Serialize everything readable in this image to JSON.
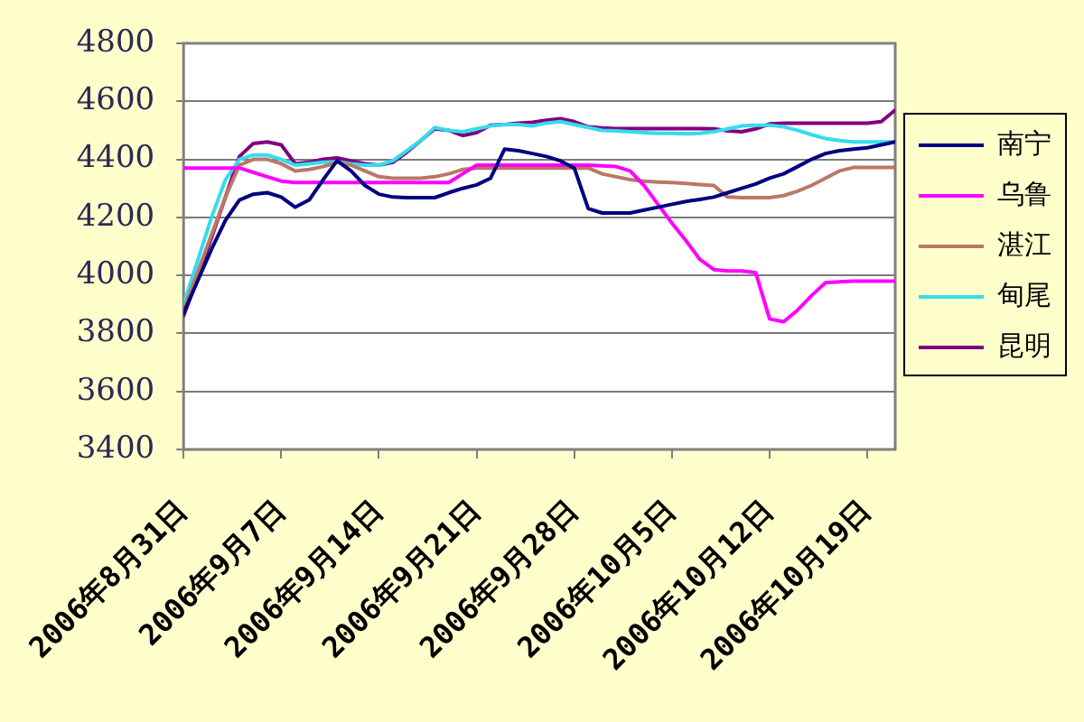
{
  "chart_data": {
    "type": "line",
    "x": [
      "2006-08-31",
      "2006-09-01",
      "2006-09-02",
      "2006-09-03",
      "2006-09-04",
      "2006-09-05",
      "2006-09-06",
      "2006-09-07",
      "2006-09-08",
      "2006-09-09",
      "2006-09-10",
      "2006-09-11",
      "2006-09-12",
      "2006-09-13",
      "2006-09-14",
      "2006-09-15",
      "2006-09-16",
      "2006-09-17",
      "2006-09-18",
      "2006-09-19",
      "2006-09-20",
      "2006-09-21",
      "2006-09-22",
      "2006-09-23",
      "2006-09-24",
      "2006-09-25",
      "2006-09-26",
      "2006-09-27",
      "2006-09-28",
      "2006-09-29",
      "2006-09-30",
      "2006-10-01",
      "2006-10-02",
      "2006-10-03",
      "2006-10-04",
      "2006-10-05",
      "2006-10-06",
      "2006-10-07",
      "2006-10-08",
      "2006-10-09",
      "2006-10-10",
      "2006-10-11",
      "2006-10-12",
      "2006-10-13",
      "2006-10-14",
      "2006-10-15",
      "2006-10-16",
      "2006-10-17",
      "2006-10-18",
      "2006-10-19",
      "2006-10-20",
      "2006-10-21"
    ],
    "series": [
      {
        "name": "南宁",
        "color": "#000080",
        "values": [
          3870,
          3980,
          4090,
          4190,
          4260,
          4280,
          4285,
          4270,
          4235,
          4260,
          4330,
          4395,
          4360,
          4310,
          4280,
          4270,
          4268,
          4268,
          4268,
          4285,
          4300,
          4312,
          4335,
          4435,
          4430,
          4420,
          4410,
          4395,
          4370,
          4230,
          4215,
          4215,
          4215,
          4225,
          4235,
          4245,
          4255,
          4262,
          4270,
          4285,
          4300,
          4315,
          4335,
          4350,
          4375,
          4400,
          4420,
          4430,
          4435,
          4440,
          4450,
          4460
        ]
      },
      {
        "name": "乌鲁",
        "color": "#ff00ff",
        "values": [
          4370,
          4370,
          4370,
          4370,
          4370,
          4355,
          4340,
          4325,
          4320,
          4320,
          4320,
          4320,
          4320,
          4320,
          4320,
          4320,
          4320,
          4320,
          4320,
          4320,
          4350,
          4380,
          4380,
          4380,
          4380,
          4380,
          4380,
          4380,
          4380,
          4380,
          4378,
          4375,
          4360,
          4310,
          4245,
          4180,
          4120,
          4055,
          4020,
          4015,
          4015,
          4010,
          3850,
          3840,
          3880,
          3930,
          3975,
          3978,
          3980,
          3980,
          3980,
          3980
        ]
      },
      {
        "name": "湛江",
        "color": "#bb7766",
        "values": [
          3880,
          4010,
          4140,
          4270,
          4380,
          4400,
          4400,
          4385,
          4360,
          4365,
          4375,
          4390,
          4380,
          4360,
          4340,
          4335,
          4335,
          4335,
          4340,
          4350,
          4365,
          4370,
          4370,
          4370,
          4370,
          4370,
          4370,
          4370,
          4370,
          4370,
          4350,
          4340,
          4330,
          4325,
          4322,
          4320,
          4317,
          4313,
          4310,
          4270,
          4268,
          4268,
          4268,
          4275,
          4290,
          4310,
          4335,
          4360,
          4372,
          4372,
          4372,
          4372
        ]
      },
      {
        "name": "甸尾",
        "color": "#33ddee",
        "values": [
          3900,
          4050,
          4200,
          4330,
          4400,
          4415,
          4415,
          4400,
          4380,
          4385,
          4390,
          4392,
          4385,
          4380,
          4380,
          4395,
          4430,
          4465,
          4510,
          4500,
          4495,
          4505,
          4515,
          4520,
          4520,
          4515,
          4525,
          4530,
          4520,
          4510,
          4500,
          4498,
          4495,
          4492,
          4490,
          4490,
          4488,
          4490,
          4495,
          4505,
          4515,
          4518,
          4518,
          4512,
          4500,
          4485,
          4472,
          4465,
          4460,
          4460,
          4460,
          4460
        ]
      },
      {
        "name": "昆明",
        "color": "#800080",
        "values": [
          3860,
          3990,
          4130,
          4270,
          4410,
          4455,
          4460,
          4450,
          4385,
          4390,
          4400,
          4405,
          4395,
          4385,
          4380,
          4390,
          4425,
          4465,
          4505,
          4500,
          4482,
          4492,
          4518,
          4520,
          4525,
          4528,
          4535,
          4540,
          4530,
          4512,
          4508,
          4506,
          4506,
          4506,
          4506,
          4506,
          4506,
          4506,
          4505,
          4498,
          4495,
          4505,
          4522,
          4525,
          4525,
          4525,
          4525,
          4525,
          4525,
          4525,
          4530,
          4570
        ]
      }
    ],
    "xlim": [
      "2006-08-31",
      "2006-10-21"
    ],
    "xticks": [
      {
        "value": "2006-08-31",
        "label": "2006年8月31日"
      },
      {
        "value": "2006-09-07",
        "label": "2006年9月7日"
      },
      {
        "value": "2006-09-14",
        "label": "2006年9月14日"
      },
      {
        "value": "2006-09-21",
        "label": "2006年9月21日"
      },
      {
        "value": "2006-09-28",
        "label": "2006年9月28日"
      },
      {
        "value": "2006-10-05",
        "label": "2006年10月5日"
      },
      {
        "value": "2006-10-12",
        "label": "2006年10月12日"
      },
      {
        "value": "2006-10-19",
        "label": "2006年10月19日"
      }
    ],
    "ylim": [
      3400,
      4800
    ],
    "yticks": [
      3400,
      3600,
      3800,
      4000,
      4200,
      4400,
      4600,
      4800
    ],
    "grid": "y",
    "legend": "right"
  }
}
